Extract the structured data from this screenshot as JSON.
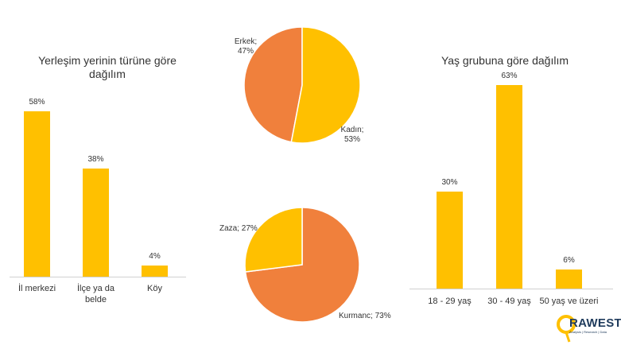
{
  "chart_data": [
    {
      "type": "bar",
      "title": "Yerleşim yerinin türüne göre dağılım",
      "title_lines": [
        "Yerleşim yerinin türüne göre",
        "dağılım"
      ],
      "categories": [
        "İl merkezi",
        "İlçe ya da belde",
        "Köy"
      ],
      "category_lines": [
        [
          "İl merkezi"
        ],
        [
          "İlçe ya da",
          "belde"
        ],
        [
          "Köy"
        ]
      ],
      "values": [
        58,
        38,
        4
      ],
      "value_labels": [
        "58%",
        "38%",
        "4%"
      ],
      "unit": "%",
      "color": "#FFC000",
      "ylim": [
        0,
        63
      ]
    },
    {
      "type": "pie",
      "slices": [
        {
          "label": "Erkek;",
          "value": 47,
          "value_label": "47%",
          "color": "#F0803C"
        },
        {
          "label": "Kadın;",
          "value": 53,
          "value_label": "53%",
          "color": "#FFC000"
        }
      ]
    },
    {
      "type": "pie",
      "slices": [
        {
          "label": "Kurmanc; 73%",
          "value": 73,
          "color": "#F0803C"
        },
        {
          "label": "Zaza; 27%",
          "value": 27,
          "color": "#FFC000"
        }
      ]
    },
    {
      "type": "bar",
      "title": "Yaş grubuna göre dağılım",
      "categories": [
        "18 - 29 yaş",
        "30 - 49 yaş",
        "50 yaş ve üzeri"
      ],
      "values": [
        30,
        63,
        6
      ],
      "value_labels": [
        "30%",
        "63%",
        "6%"
      ],
      "unit": "%",
      "color": "#FFC000",
      "ylim": [
        0,
        63
      ]
    }
  ],
  "logo": {
    "text": "RAWEST",
    "subtitle": "Analysis | Research | Data",
    "colors": {
      "ring": "#FFC000",
      "text": "#1F3B5C"
    }
  }
}
